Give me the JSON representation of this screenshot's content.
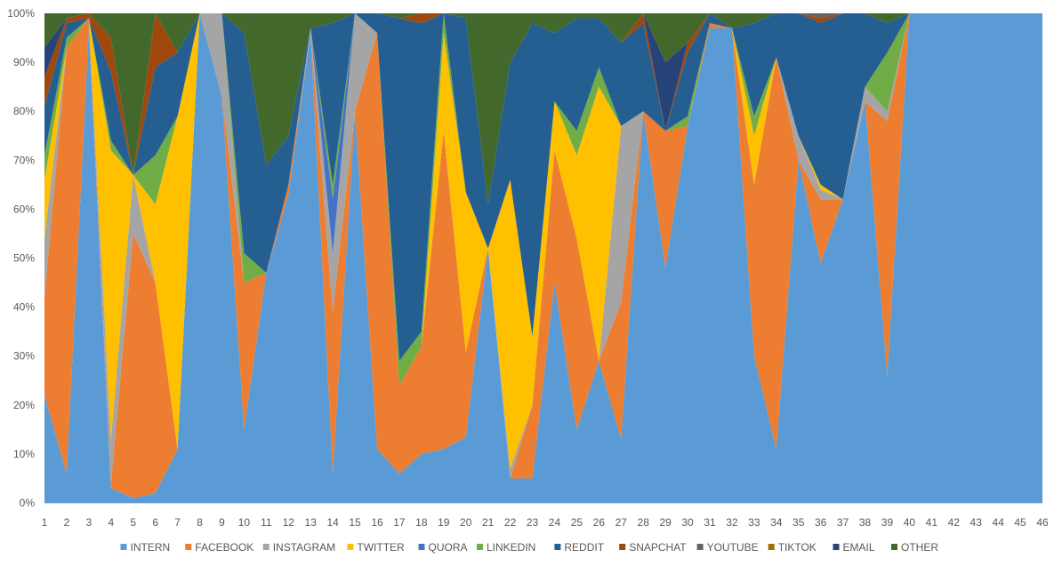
{
  "chart_data": {
    "type": "area",
    "stacked": "percent",
    "title": "",
    "xlabel": "",
    "ylabel": "",
    "ylim": [
      0,
      100
    ],
    "grid": false,
    "legend_position": "bottom",
    "x": [
      1,
      2,
      3,
      4,
      5,
      6,
      7,
      8,
      9,
      10,
      11,
      12,
      13,
      14,
      15,
      16,
      17,
      18,
      19,
      20,
      21,
      22,
      23,
      24,
      25,
      26,
      27,
      28,
      29,
      30,
      31,
      32,
      33,
      34,
      35,
      36,
      37,
      38,
      39,
      40,
      41,
      42,
      43,
      44,
      45,
      46
    ],
    "y_ticks": [
      "0%",
      "10%",
      "20%",
      "30%",
      "40%",
      "50%",
      "60%",
      "70%",
      "80%",
      "90%",
      "100%"
    ],
    "series": [
      {
        "name": "INTERN",
        "color": "#5B9BD5",
        "values": [
          22,
          6,
          97,
          3,
          1,
          2,
          11,
          100,
          83,
          15,
          47,
          63,
          96,
          6,
          80,
          11,
          6,
          10,
          11,
          14,
          52,
          5,
          5,
          45,
          15,
          29,
          13,
          80,
          48,
          77,
          97,
          97,
          30,
          11,
          70,
          49,
          62,
          82,
          26,
          100,
          100,
          100,
          100,
          100,
          100,
          100
        ]
      },
      {
        "name": "FACEBOOK",
        "color": "#ED7D31",
        "values": [
          20,
          87,
          2,
          1,
          54,
          43,
          0,
          0,
          0,
          30,
          0,
          2,
          0,
          33,
          0,
          85,
          18,
          22,
          65,
          18,
          0,
          0,
          15,
          27,
          39,
          0,
          28,
          0,
          28,
          0,
          1,
          0,
          35,
          80,
          0,
          13,
          0,
          0,
          52,
          0,
          0,
          0,
          0,
          0,
          0,
          0
        ]
      },
      {
        "name": "INSTAGRAM",
        "color": "#A5A5A5",
        "values": [
          12,
          0,
          0,
          9,
          12,
          0,
          0,
          0,
          17,
          0,
          0,
          0,
          1,
          12,
          20,
          0,
          0,
          0,
          0,
          0,
          0,
          2,
          0,
          0,
          0,
          0,
          36,
          0,
          0,
          0,
          0,
          0,
          0,
          0,
          5,
          2,
          0,
          3,
          2,
          0,
          0,
          0,
          0,
          0,
          0,
          0
        ]
      },
      {
        "name": "TWITTER",
        "color": "#FFC000",
        "values": [
          12,
          0,
          0,
          59,
          0,
          16,
          68,
          0,
          0,
          0,
          0,
          0,
          0,
          0,
          0,
          0,
          0,
          0,
          20,
          34,
          0,
          59,
          14,
          10,
          17,
          56,
          0,
          0,
          0,
          0,
          0,
          0,
          10,
          0,
          0,
          1,
          0,
          0,
          0,
          0,
          0,
          0,
          0,
          0,
          0,
          0
        ]
      },
      {
        "name": "QUORA",
        "color": "#4472C4",
        "values": [
          0,
          0,
          0,
          0,
          0,
          0,
          0,
          0,
          0,
          0,
          0,
          0,
          0,
          11,
          0,
          0,
          0,
          0,
          0,
          0,
          0,
          0,
          0,
          0,
          0,
          0,
          0,
          0,
          0,
          0,
          0,
          0,
          0,
          0,
          0,
          0,
          0,
          0,
          0,
          0,
          0,
          0,
          0,
          0,
          0,
          0
        ]
      },
      {
        "name": "LINKEDIN",
        "color": "#70AD47",
        "values": [
          5,
          2,
          0,
          2,
          0,
          10,
          0,
          0,
          0,
          6,
          0,
          0,
          0,
          3,
          0,
          0,
          5,
          3,
          4,
          0,
          0,
          0,
          0,
          0,
          5,
          4,
          0,
          0,
          0,
          2,
          0,
          0,
          4,
          0,
          0,
          0,
          0,
          0,
          12,
          0,
          0,
          0,
          0,
          0,
          0,
          0
        ]
      },
      {
        "name": "REDDIT",
        "color": "#255E91",
        "values": [
          10,
          3,
          0,
          14,
          0,
          18,
          13,
          0,
          0,
          45,
          22,
          10,
          0,
          33,
          0,
          4,
          70,
          63,
          0,
          37,
          9,
          24,
          64,
          14,
          23,
          10,
          17,
          18,
          0,
          13,
          2,
          0,
          19,
          9,
          25,
          33,
          38,
          15,
          6,
          0,
          0,
          0,
          0,
          0,
          0,
          0
        ]
      },
      {
        "name": "SNAPCHAT",
        "color": "#9E480E",
        "values": [
          6,
          1,
          1,
          7,
          0,
          11,
          0,
          0,
          0,
          0,
          0,
          0,
          0,
          0,
          0,
          0,
          0,
          2,
          0,
          0,
          0,
          0,
          0,
          0,
          0,
          0,
          0,
          2,
          0,
          2,
          0,
          0,
          0,
          0,
          0,
          1,
          0,
          0,
          0,
          0,
          0,
          0,
          0,
          0,
          0,
          0
        ]
      },
      {
        "name": "YOUTUBE",
        "color": "#636363",
        "values": [
          0,
          0,
          0,
          0,
          0,
          0,
          0,
          0,
          0,
          0,
          0,
          0,
          0,
          0,
          0,
          0,
          0,
          0,
          0,
          0,
          0,
          0,
          0,
          0,
          0,
          0,
          0,
          0,
          0,
          0,
          0,
          0,
          0,
          0,
          0,
          1,
          0,
          0,
          0,
          0,
          0,
          0,
          0,
          0,
          0,
          0
        ]
      },
      {
        "name": "TIKTOK",
        "color": "#997300",
        "values": [
          0,
          0,
          0,
          0,
          0,
          0,
          0,
          0,
          0,
          0,
          0,
          0,
          0,
          0,
          0,
          0,
          0,
          0,
          0,
          0,
          0,
          0,
          0,
          0,
          0,
          0,
          0,
          0,
          0,
          0,
          0,
          0,
          0,
          0,
          0,
          0,
          0,
          0,
          0,
          0,
          0,
          0,
          0,
          0,
          0,
          0
        ]
      },
      {
        "name": "EMAIL",
        "color": "#264478",
        "values": [
          6,
          0,
          0,
          0,
          0,
          0,
          0,
          0,
          0,
          0,
          0,
          0,
          0,
          0,
          0,
          0,
          0,
          0,
          0,
          0,
          0,
          0,
          0,
          0,
          0,
          0,
          0,
          0,
          14,
          0,
          0,
          0,
          0,
          0,
          0,
          0,
          0,
          0,
          0,
          0,
          0,
          0,
          0,
          0,
          0,
          0
        ]
      },
      {
        "name": "OTHER",
        "color": "#43682B",
        "values": [
          7,
          1,
          0,
          5,
          33,
          0,
          8,
          0,
          0,
          4,
          31,
          25,
          3,
          2,
          0,
          0,
          1,
          0,
          0,
          1,
          39,
          10,
          2,
          4,
          1,
          1,
          6,
          0,
          10,
          6,
          0,
          3,
          2,
          0,
          0,
          0,
          0,
          0,
          2,
          0,
          0,
          0,
          0,
          0,
          0,
          0
        ]
      }
    ]
  }
}
